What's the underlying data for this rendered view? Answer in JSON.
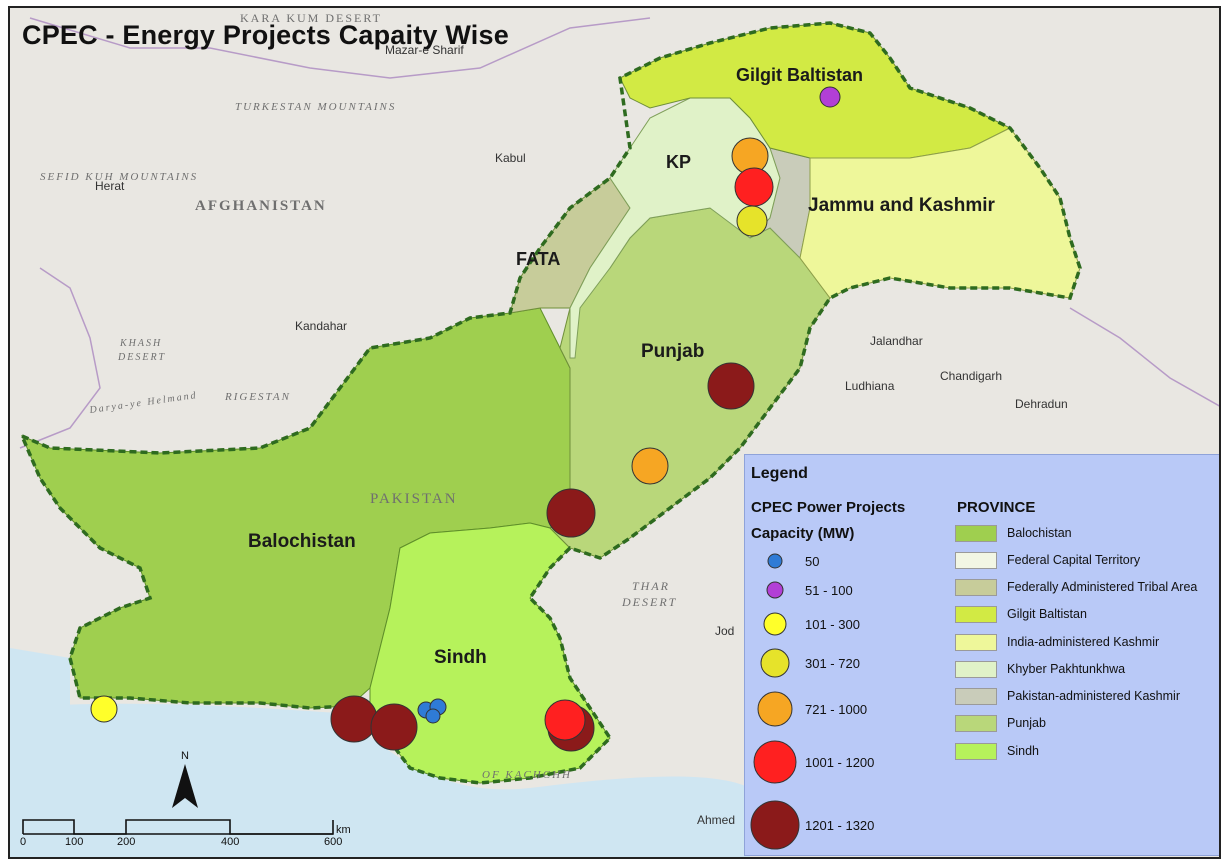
{
  "title": "CPEC - Energy Projects Capaity Wise",
  "map": {
    "region_labels": [
      {
        "id": "gilgit",
        "text": "Gilgit Baltistan"
      },
      {
        "id": "kp",
        "text": "KP"
      },
      {
        "id": "jk",
        "text": "Jammu and Kashmir"
      },
      {
        "id": "fata",
        "text": "FATA"
      },
      {
        "id": "punjab",
        "text": "Punjab"
      },
      {
        "id": "balochistan",
        "text": "Balochistan"
      },
      {
        "id": "sindh",
        "text": "Sindh"
      }
    ],
    "background_labels": {
      "karakum": "KARA KUM DESERT",
      "turkestan": "TURKESTAN MOUNTAINS",
      "sefid": "SEFID KUH MOUNTAINS",
      "afghanistan": "AFGHANISTAN",
      "khash": "KHASH",
      "desert": "DESERT",
      "rigestan": "RIGESTAN",
      "pakistan": "PAKISTAN",
      "thar": "THAR",
      "thar_desert": "DESERT",
      "kachchh": "OF KACHCHH",
      "darya": "Darya-ye Helmand"
    },
    "cities": {
      "mazar": "Mazar-e Sharif",
      "kabul": "Kabul",
      "herat": "Herat",
      "kandahar": "Kandahar",
      "jalandhar": "Jalandhar",
      "chandigarh": "Chandigarh",
      "ludhiana": "Ludhiana",
      "dehradun": "Dehradun",
      "ahmedabad": "Ahmed",
      "jodhpur": "Jod"
    }
  },
  "legend": {
    "title": "Legend",
    "projects_heading": "CPEC Power Projects",
    "capacity_heading": "Capacity (MW)",
    "province_heading": "PROVINCE",
    "capacity_classes": [
      {
        "label": "50",
        "color": "#2f7bd6"
      },
      {
        "label": "51 - 100",
        "color": "#b23fd6"
      },
      {
        "label": "101 - 300",
        "color": "#ffff2a"
      },
      {
        "label": "301 - 720",
        "color": "#e6e32a"
      },
      {
        "label": "721 - 1000",
        "color": "#f6a623"
      },
      {
        "label": "1001 - 1200",
        "color": "#ff2020"
      },
      {
        "label": "1201 - 1320",
        "color": "#8b1a1a"
      }
    ],
    "provinces": [
      {
        "label": "Balochistan",
        "color": "#9fcf4f"
      },
      {
        "label": "Federal Capital Territory",
        "color": "#f2f6e4"
      },
      {
        "label": "Federally Administered Tribal Area",
        "color": "#c7cc9a"
      },
      {
        "label": "Gilgit Baltistan",
        "color": "#d2ea44"
      },
      {
        "label": "India-administered Kashmir",
        "color": "#eef79a"
      },
      {
        "label": "Khyber Pakhtunkhwa",
        "color": "#e0f2c8"
      },
      {
        "label": "Pakistan-administered Kashmir",
        "color": "#c9ccba"
      },
      {
        "label": "Punjab",
        "color": "#b9d77a"
      },
      {
        "label": "Sindh",
        "color": "#b6f25b"
      }
    ]
  },
  "scale_bar": {
    "ticks": [
      "0",
      "100",
      "200",
      "400",
      "600"
    ],
    "unit": "km"
  },
  "north_label": "N"
}
